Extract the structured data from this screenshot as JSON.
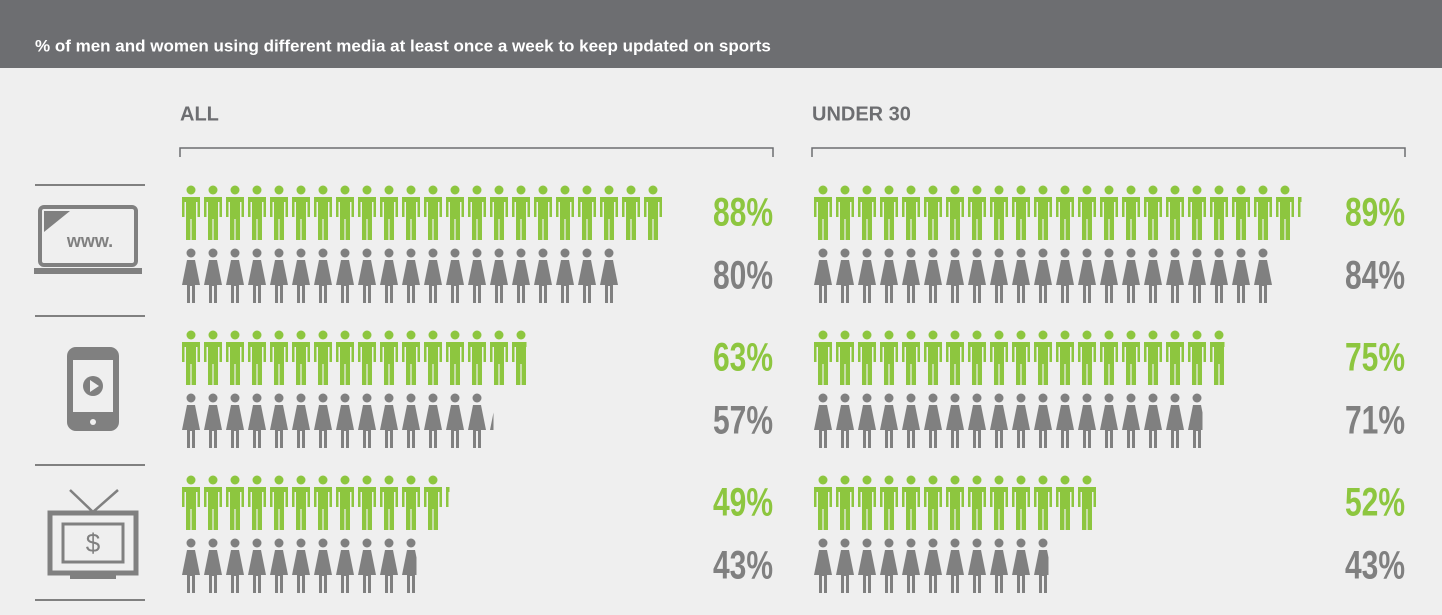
{
  "title": "% of men and women using different media at least once a week to keep updated on sports",
  "icons": {
    "laptop_text": "www.",
    "tv_text": "$"
  },
  "chart_data": [
    {
      "type": "pictogram",
      "title": "ALL",
      "series": [
        {
          "color": "#8dc63f",
          "values": [
            88,
            63,
            49
          ],
          "value_labels": [
            "88%",
            "63%",
            "49%"
          ]
        },
        {
          "color": "#808080",
          "values": [
            80,
            57,
            43
          ],
          "value_labels": [
            "80%",
            "57%",
            "43%"
          ]
        }
      ]
    },
    {
      "type": "pictogram",
      "title": "UNDER 30",
      "series": [
        {
          "color": "#8dc63f",
          "values": [
            89,
            75,
            52
          ],
          "value_labels": [
            "89%",
            "75%",
            "52%"
          ]
        },
        {
          "color": "#808080",
          "values": [
            84,
            71,
            43
          ],
          "value_labels": [
            "84%",
            "71%",
            "43%"
          ]
        }
      ]
    }
  ]
}
